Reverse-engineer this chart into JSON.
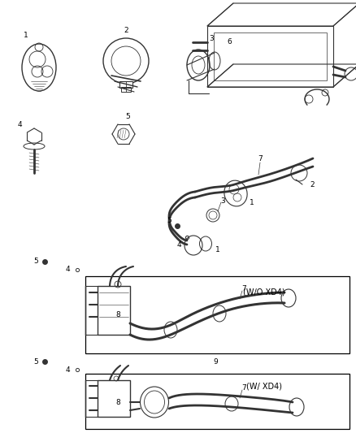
{
  "bg_color": "#ffffff",
  "line_color": "#333333",
  "figsize": [
    4.38,
    5.33
  ],
  "dpi": 100,
  "label_fs": 6.5,
  "box1_label": "(W/O XD4)",
  "box2_label": "(W/ XD4)",
  "label_9": "9"
}
